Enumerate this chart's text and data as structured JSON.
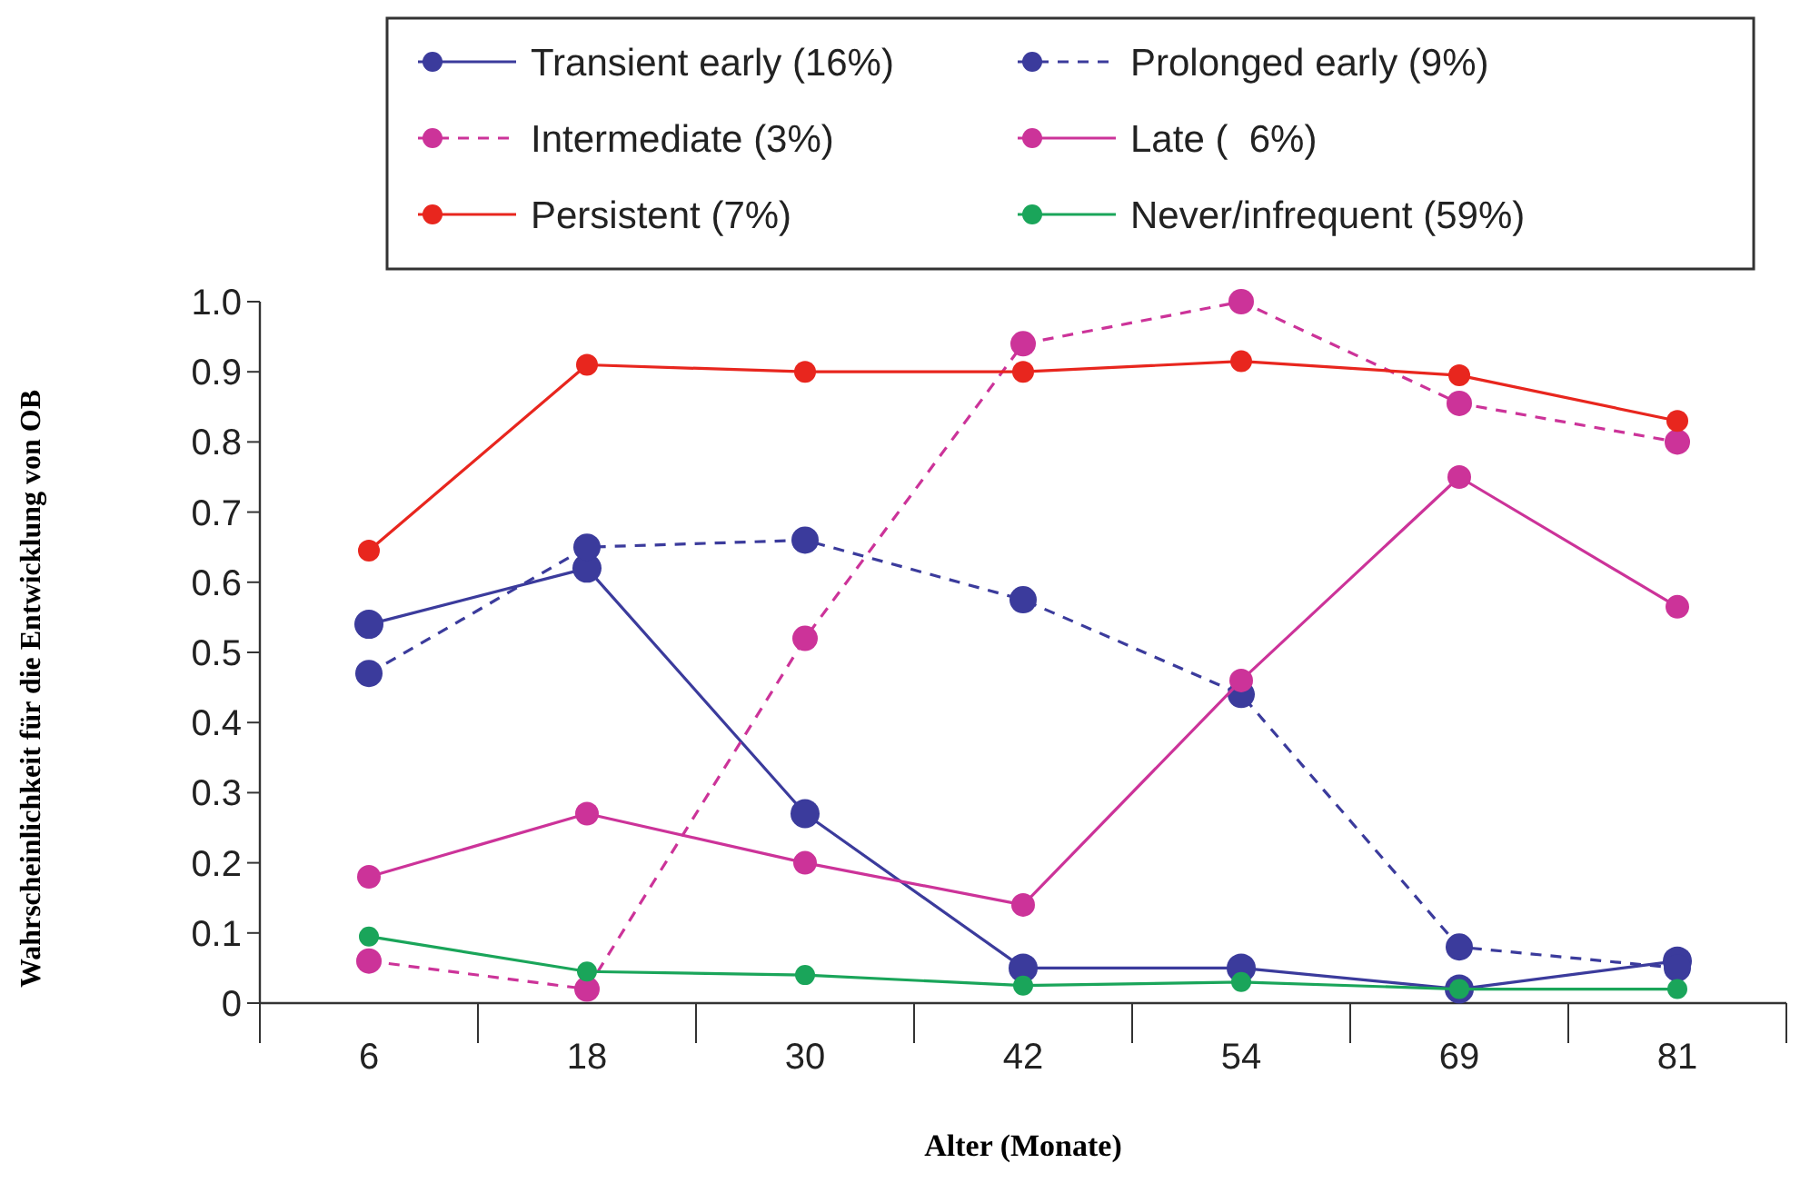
{
  "chart_data": {
    "type": "line",
    "xlabel": "Alter (Monate)",
    "ylabel": "Wahrscheinlichkeit für die Entwicklung von OB",
    "categories": [
      "6",
      "18",
      "30",
      "42",
      "54",
      "69",
      "81"
    ],
    "ylim": [
      0,
      1
    ],
    "yticks": [
      {
        "value": 0,
        "label": "0"
      },
      {
        "value": 0.1,
        "label": "0.1"
      },
      {
        "value": 0.2,
        "label": "0.2"
      },
      {
        "value": 0.3,
        "label": "0.3"
      },
      {
        "value": 0.4,
        "label": "0.4"
      },
      {
        "value": 0.5,
        "label": "0.5"
      },
      {
        "value": 0.6,
        "label": "0.6"
      },
      {
        "value": 0.7,
        "label": "0.7"
      },
      {
        "value": 0.8,
        "label": "0.8"
      },
      {
        "value": 0.9,
        "label": "0.9"
      },
      {
        "value": 1,
        "label": "1.0"
      }
    ],
    "grid": false,
    "legend": "top",
    "marker": "circle",
    "series": [
      {
        "name": "Transient early (16%)",
        "color": "#3b3b9c",
        "line_style": "solid",
        "values": [
          0.54,
          0.62,
          0.27,
          0.05,
          0.05,
          0.02,
          0.06
        ]
      },
      {
        "name": "Prolonged early (9%)",
        "color": "#3b3b9c",
        "line_style": "dashed",
        "values": [
          0.47,
          0.65,
          0.66,
          0.575,
          0.44,
          0.08,
          0.05
        ]
      },
      {
        "name": "Intermediate (3%)",
        "color": "#cc3399",
        "line_style": "dashed",
        "values": [
          0.06,
          0.02,
          0.52,
          0.94,
          1.0,
          0.855,
          0.8
        ]
      },
      {
        "name": "Late (  6%)",
        "color": "#cc3399",
        "line_style": "solid",
        "values": [
          0.18,
          0.27,
          0.2,
          0.14,
          0.46,
          0.75,
          0.565
        ]
      },
      {
        "name": "Persistent (7%)",
        "color": "#e8261e",
        "line_style": "solid",
        "values": [
          0.645,
          0.91,
          0.9,
          0.9,
          0.915,
          0.895,
          0.83
        ]
      },
      {
        "name": "Never/infrequent (59%)",
        "color": "#1aa55a",
        "line_style": "solid",
        "values": [
          0.095,
          0.045,
          0.04,
          0.025,
          0.03,
          0.02,
          0.02
        ]
      }
    ]
  }
}
